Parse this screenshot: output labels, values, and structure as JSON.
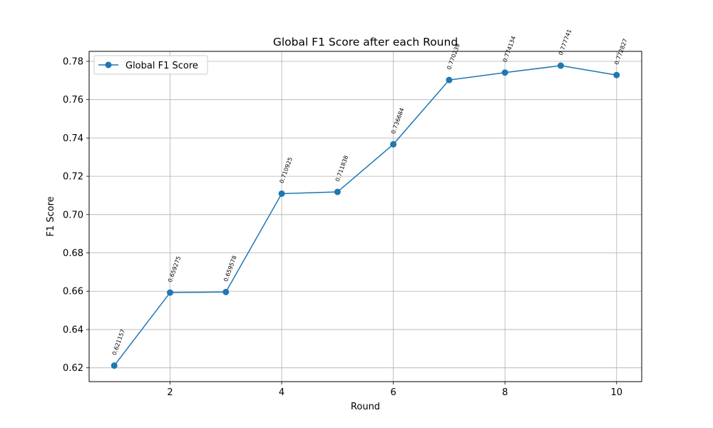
{
  "chart_data": {
    "type": "line",
    "title": "Global F1 Score after each Round",
    "xlabel": "Round",
    "ylabel": "F1 Score",
    "xlim": [
      0.55,
      10.45
    ],
    "ylim": [
      0.6128,
      0.7852
    ],
    "xticks": [
      2,
      4,
      6,
      8,
      10
    ],
    "yticks": [
      0.62,
      0.64,
      0.66,
      0.68,
      0.7,
      0.72,
      0.74,
      0.76,
      0.78
    ],
    "ytick_labels": [
      "0.62",
      "0.64",
      "0.66",
      "0.68",
      "0.70",
      "0.72",
      "0.74",
      "0.76",
      "0.78"
    ],
    "grid": true,
    "legend_position": "upper-left",
    "series": [
      {
        "name": "Global F1 Score",
        "color": "#1f77b4",
        "marker": "circle",
        "x": [
          1,
          2,
          3,
          4,
          5,
          6,
          7,
          8,
          9,
          10
        ],
        "y": [
          0.621157,
          0.659275,
          0.659578,
          0.710925,
          0.711838,
          0.736684,
          0.770239,
          0.774134,
          0.777741,
          0.772827
        ],
        "point_labels": [
          "0.621157",
          "0.659275",
          "0.659578",
          "0.710925",
          "0.711838",
          "0.736684",
          "0.770239",
          "0.774134",
          "0.777741",
          "0.772827"
        ]
      }
    ]
  }
}
